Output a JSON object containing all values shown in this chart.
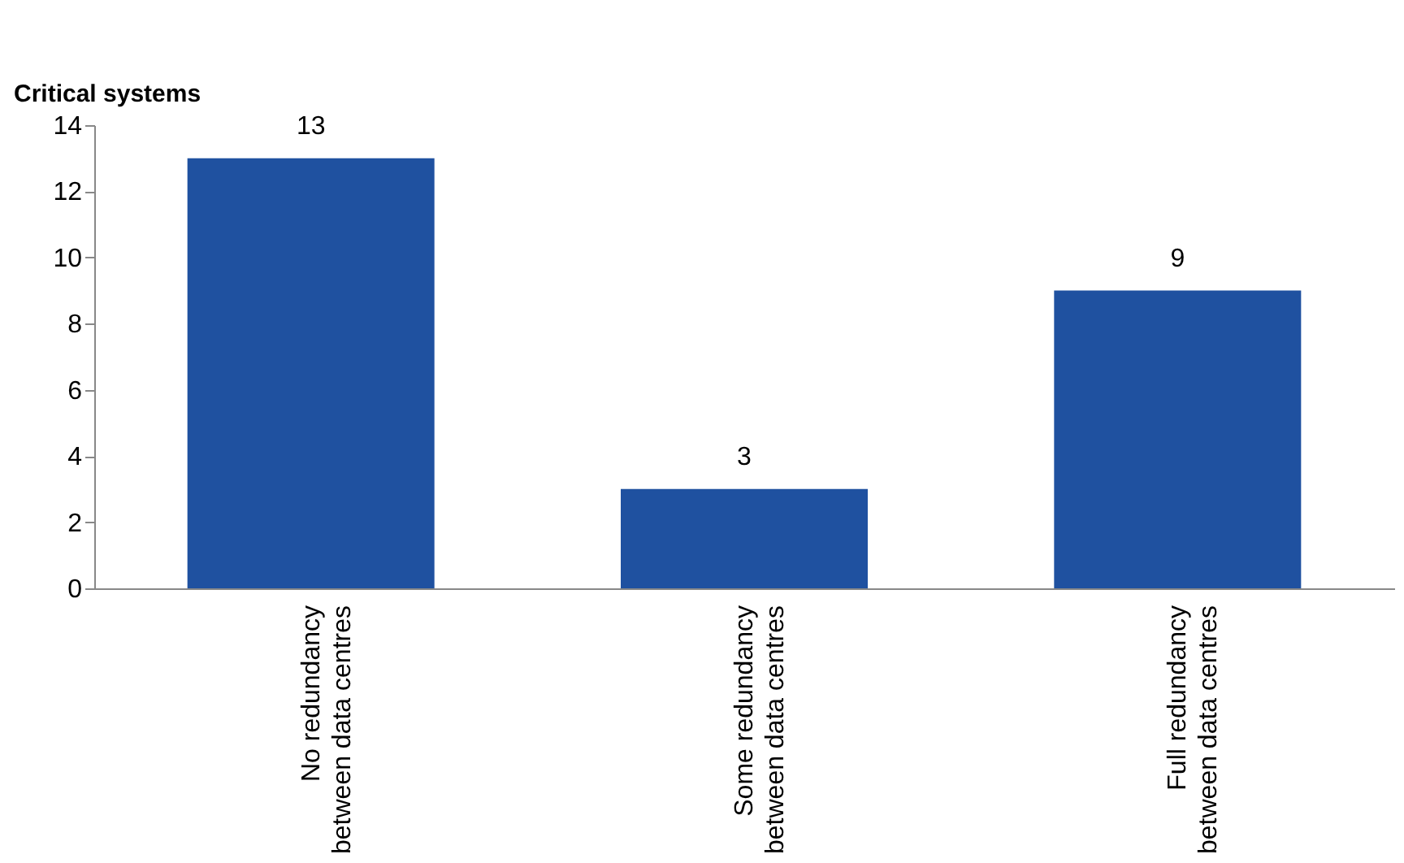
{
  "chart_data": {
    "type": "bar",
    "ylabel": "Critical systems",
    "categories": [
      "No redundancy between data centres",
      "Some redundancy between data centres",
      "Full redundancy between data centres"
    ],
    "values": [
      13,
      3,
      9
    ],
    "color": "#1f51a0",
    "ylim": [
      0,
      14
    ],
    "yticks": [
      0,
      2,
      4,
      6,
      8,
      10,
      12,
      14
    ],
    "grid": false,
    "data_labels": true
  }
}
